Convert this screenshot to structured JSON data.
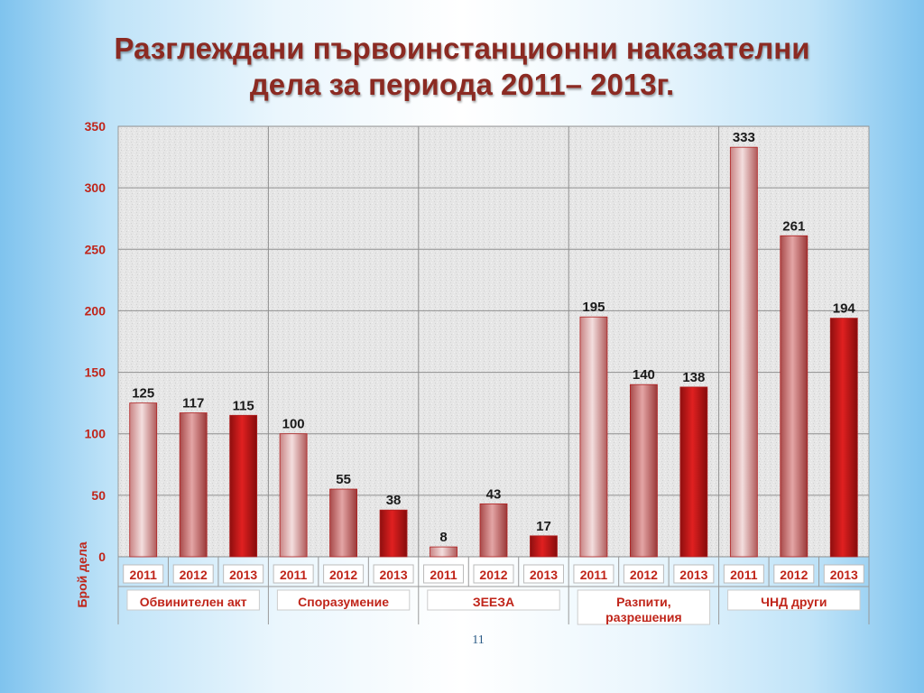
{
  "slide": {
    "title_line1": "Разглеждани първоинстанционни наказателни",
    "title_line2": "дела за периода 2011– 2013г.",
    "page_number": "11"
  },
  "colors": {
    "title": "#8b2a22",
    "axis_text": "#c0251a",
    "label_text": "#c0251a",
    "bar_2011": [
      "#c98484",
      "#f3dede",
      "#b05a5a"
    ],
    "bar_2012": [
      "#a84a4a",
      "#e3a5a5",
      "#9a3838"
    ],
    "bar_2013": [
      "#8e0f0f",
      "#e02020",
      "#860c0c"
    ]
  },
  "chart_data": {
    "type": "bar",
    "ylabel": "Брой дела",
    "ylim": [
      0,
      350
    ],
    "yticks": [
      0,
      50,
      100,
      150,
      200,
      250,
      300,
      350
    ],
    "grid": true,
    "groups": [
      {
        "label": "Обвинителен акт",
        "years": [
          "2011",
          "2012",
          "2013"
        ],
        "values": [
          125,
          117,
          115
        ]
      },
      {
        "label": "Споразумение",
        "years": [
          "2011",
          "2012",
          "2013"
        ],
        "values": [
          100,
          55,
          38
        ]
      },
      {
        "label": "ЗЕЕЗА",
        "years": [
          "2011",
          "2012",
          "2013"
        ],
        "values": [
          8,
          43,
          17
        ]
      },
      {
        "label": "Разпити, разрешения",
        "years": [
          "2011",
          "2012",
          "2013"
        ],
        "values": [
          195,
          140,
          138
        ]
      },
      {
        "label": "ЧНД други",
        "years": [
          "2011",
          "2012",
          "2013"
        ],
        "values": [
          333,
          261,
          194
        ]
      }
    ]
  }
}
